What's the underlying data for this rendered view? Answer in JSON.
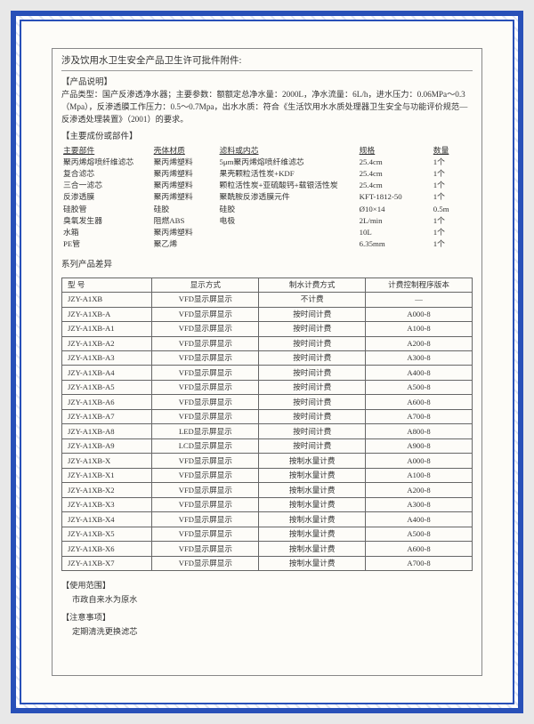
{
  "title": "涉及饮用水卫生安全产品卫生许可批件附件:",
  "product_desc_head": "【产品说明】",
  "product_desc": "产品类型：国产反渗透净水器；主要参数：额额定总净水量：2000L，净水流量：6L/h，进水压力：0.06MPa～0.3（Mpa），反渗透膜工作压力：0.5～0.7Mpa，出水水质：符合《生活饮用水水质处理器卫生安全与功能评价规范—反渗透处理装置》（2001）的要求。",
  "parts_head": "【主要成份或部件】",
  "parts_header": {
    "c1": "主要部件",
    "c2": "壳体材质",
    "c3": "滤料或内芯",
    "c4": "规格",
    "c5": "数量"
  },
  "parts": [
    {
      "c1": "聚丙烯熔喷纤维滤芯",
      "c2": "聚丙烯塑料",
      "c3": "5μm聚丙烯熔喷纤维滤芯",
      "c4": "25.4cm",
      "c5": "1个"
    },
    {
      "c1": "复合滤芯",
      "c2": "聚丙烯塑料",
      "c3": "果壳颗粒活性炭+KDF",
      "c4": "25.4cm",
      "c5": "1个"
    },
    {
      "c1": "三合一滤芯",
      "c2": "聚丙烯塑料",
      "c3": "颗粒活性炭+亚硫酸钙+载银活性炭",
      "c4": "25.4cm",
      "c5": "1个"
    },
    {
      "c1": "反渗透膜",
      "c2": "聚丙烯塑料",
      "c3": "聚酰胺反渗透膜元件",
      "c4": "KFT-1812-50",
      "c5": "1个"
    },
    {
      "c1": "硅胶管",
      "c2": "硅胶",
      "c3": "硅胶",
      "c4": "Ø10×14",
      "c5": "0.5m"
    },
    {
      "c1": "臭氧发生器",
      "c2": "阻燃ABS",
      "c3": "电极",
      "c4": "2L/min",
      "c5": "1个"
    },
    {
      "c1": "水箱",
      "c2": "聚丙烯塑料",
      "c3": "",
      "c4": "10L",
      "c5": "1个"
    },
    {
      "c1": "PE管",
      "c2": "聚乙烯",
      "c3": "",
      "c4": "6.35mm",
      "c5": "1个"
    }
  ],
  "series_label": "系列产品差异",
  "model_header": {
    "c1": "型 号",
    "c2": "显示方式",
    "c3": "制水计费方式",
    "c4": "计费控制程序版本"
  },
  "models": [
    {
      "c1": "JZY-A1XB",
      "c2": "VFD显示屏显示",
      "c3": "不计费",
      "c4": "—"
    },
    {
      "c1": "JZY-A1XB-A",
      "c2": "VFD显示屏显示",
      "c3": "按时间计费",
      "c4": "A000-8"
    },
    {
      "c1": "JZY-A1XB-A1",
      "c2": "VFD显示屏显示",
      "c3": "按时间计费",
      "c4": "A100-8"
    },
    {
      "c1": "JZY-A1XB-A2",
      "c2": "VFD显示屏显示",
      "c3": "按时间计费",
      "c4": "A200-8"
    },
    {
      "c1": "JZY-A1XB-A3",
      "c2": "VFD显示屏显示",
      "c3": "按时间计费",
      "c4": "A300-8"
    },
    {
      "c1": "JZY-A1XB-A4",
      "c2": "VFD显示屏显示",
      "c3": "按时间计费",
      "c4": "A400-8"
    },
    {
      "c1": "JZY-A1XB-A5",
      "c2": "VFD显示屏显示",
      "c3": "按时间计费",
      "c4": "A500-8"
    },
    {
      "c1": "JZY-A1XB-A6",
      "c2": "VFD显示屏显示",
      "c3": "按时间计费",
      "c4": "A600-8"
    },
    {
      "c1": "JZY-A1XB-A7",
      "c2": "VFD显示屏显示",
      "c3": "按时间计费",
      "c4": "A700-8"
    },
    {
      "c1": "JZY-A1XB-A8",
      "c2": "LED显示屏显示",
      "c3": "按时间计费",
      "c4": "A800-8"
    },
    {
      "c1": "JZY-A1XB-A9",
      "c2": "LCD显示屏显示",
      "c3": "按时间计费",
      "c4": "A900-8"
    },
    {
      "c1": "JZY-A1XB-X",
      "c2": "VFD显示屏显示",
      "c3": "按制水量计费",
      "c4": "A000-8"
    },
    {
      "c1": "JZY-A1XB-X1",
      "c2": "VFD显示屏显示",
      "c3": "按制水量计费",
      "c4": "A100-8"
    },
    {
      "c1": "JZY-A1XB-X2",
      "c2": "VFD显示屏显示",
      "c3": "按制水量计费",
      "c4": "A200-8"
    },
    {
      "c1": "JZY-A1XB-X3",
      "c2": "VFD显示屏显示",
      "c3": "按制水量计费",
      "c4": "A300-8"
    },
    {
      "c1": "JZY-A1XB-X4",
      "c2": "VFD显示屏显示",
      "c3": "按制水量计费",
      "c4": "A400-8"
    },
    {
      "c1": "JZY-A1XB-X5",
      "c2": "VFD显示屏显示",
      "c3": "按制水量计费",
      "c4": "A500-8"
    },
    {
      "c1": "JZY-A1XB-X6",
      "c2": "VFD显示屏显示",
      "c3": "按制水量计费",
      "c4": "A600-8"
    },
    {
      "c1": "JZY-A1XB-X7",
      "c2": "VFD显示屏显示",
      "c3": "按制水量计费",
      "c4": "A700-8"
    }
  ],
  "usage_head": "【使用范围】",
  "usage_text": "市政自来水为原水",
  "note_head": "【注意事项】",
  "note_text": "定期清洗更换滤芯"
}
